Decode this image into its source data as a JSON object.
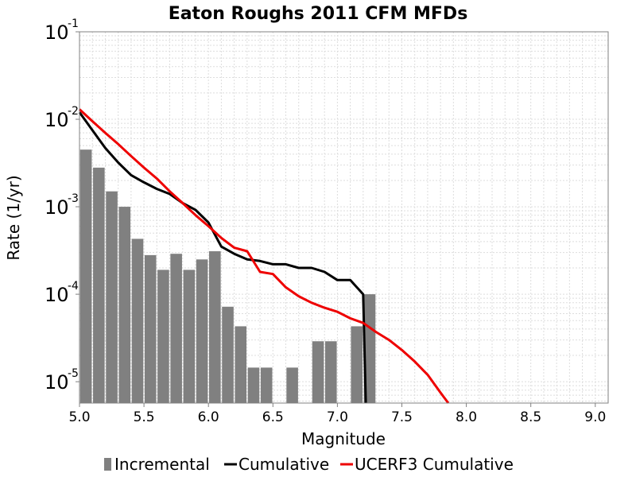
{
  "chart_data": {
    "type": "bar+line",
    "title": "Eaton Roughs 2011 CFM MFDs",
    "xlabel": "Magnitude",
    "ylabel": "Rate (1/yr)",
    "xlim": [
      5.0,
      9.1
    ],
    "ylim": [
      5.7e-06,
      0.1
    ],
    "yscale": "log",
    "grid": true,
    "legend_position": "bottom",
    "x_ticks": [
      "5.0",
      "5.5",
      "6.0",
      "6.5",
      "7.0",
      "7.5",
      "8.0",
      "8.5",
      "9.0"
    ],
    "x_tick_values": [
      5.0,
      5.5,
      6.0,
      6.5,
      7.0,
      7.5,
      8.0,
      8.5,
      9.0
    ],
    "y_ticks": [
      {
        "base": "10",
        "exp": "-1",
        "value": 0.1
      },
      {
        "base": "10",
        "exp": "-2",
        "value": 0.01
      },
      {
        "base": "10",
        "exp": "-3",
        "value": 0.001
      },
      {
        "base": "10",
        "exp": "-4",
        "value": 0.0001
      },
      {
        "base": "10",
        "exp": "-5",
        "value": 1e-05
      }
    ],
    "colors": {
      "incremental": "#808080",
      "cumulative": "#000000",
      "ucerf3": "#ee0000",
      "grid": "#dddddd"
    },
    "series": [
      {
        "name": "Incremental",
        "kind": "bar",
        "bar_width": 0.09,
        "x": [
          5.05,
          5.15,
          5.25,
          5.35,
          5.45,
          5.55,
          5.65,
          5.75,
          5.85,
          5.95,
          6.05,
          6.15,
          6.25,
          6.35,
          6.45,
          6.65,
          6.85,
          6.95,
          7.15,
          7.25
        ],
        "values": [
          0.0045,
          0.0028,
          0.0015,
          0.001,
          0.00043,
          0.00028,
          0.00019,
          0.00029,
          0.00019,
          0.00025,
          0.00031,
          7.2e-05,
          4.3e-05,
          1.45e-05,
          1.45e-05,
          1.45e-05,
          2.9e-05,
          2.9e-05,
          4.3e-05,
          0.0001
        ]
      },
      {
        "name": "Cumulative",
        "kind": "line",
        "x": [
          5.0,
          5.1,
          5.2,
          5.3,
          5.4,
          5.5,
          5.6,
          5.7,
          5.8,
          5.9,
          6.0,
          6.1,
          6.2,
          6.3,
          6.4,
          6.5,
          6.6,
          6.7,
          6.8,
          6.9,
          7.0,
          7.1,
          7.2,
          7.22
        ],
        "values": [
          0.012,
          0.0075,
          0.0047,
          0.0032,
          0.0023,
          0.0019,
          0.0016,
          0.0014,
          0.0011,
          0.00092,
          0.00066,
          0.00035,
          0.00029,
          0.00025,
          0.00024,
          0.00022,
          0.00022,
          0.0002,
          0.0002,
          0.00018,
          0.000145,
          0.000145,
          0.0001,
          5e-06
        ]
      },
      {
        "name": "UCERF3 Cumulative",
        "kind": "line",
        "x": [
          5.0,
          5.1,
          5.2,
          5.3,
          5.4,
          5.5,
          5.6,
          5.7,
          5.8,
          5.9,
          6.0,
          6.1,
          6.2,
          6.3,
          6.4,
          6.5,
          6.6,
          6.7,
          6.8,
          6.9,
          7.0,
          7.1,
          7.2,
          7.3,
          7.4,
          7.5,
          7.6,
          7.7,
          7.8,
          7.86
        ],
        "values": [
          0.013,
          0.0095,
          0.007,
          0.0052,
          0.0038,
          0.0028,
          0.0021,
          0.0015,
          0.0011,
          0.0008,
          0.0006,
          0.00044,
          0.00034,
          0.00031,
          0.00018,
          0.00017,
          0.00012,
          9.5e-05,
          8e-05,
          7e-05,
          6.3e-05,
          5.3e-05,
          4.7e-05,
          3.7e-05,
          3e-05,
          2.3e-05,
          1.7e-05,
          1.2e-05,
          7.5e-06,
          5e-06
        ]
      }
    ]
  }
}
